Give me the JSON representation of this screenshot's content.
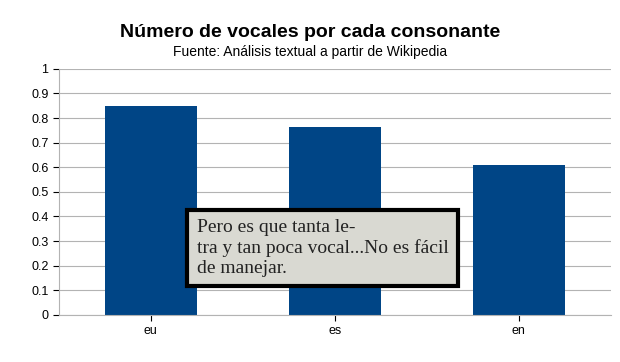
{
  "chart_data": {
    "type": "bar",
    "title": "Número de vocales por cada consonante",
    "subtitle": "Fuente: Análisis textual a partir de Wikipedia",
    "categories": [
      "eu",
      "es",
      "en"
    ],
    "values": [
      0.85,
      0.765,
      0.61
    ],
    "color": "#004586",
    "ylim": [
      0,
      1
    ],
    "yticks": [
      0,
      0.1,
      0.2,
      0.3,
      0.4,
      0.5,
      0.6,
      0.7,
      0.8,
      0.9,
      1
    ],
    "grid": true,
    "annotations": [
      "Pero es que tanta le-\ntra y tan poca vocal...No es fácil\nde manejar."
    ]
  }
}
